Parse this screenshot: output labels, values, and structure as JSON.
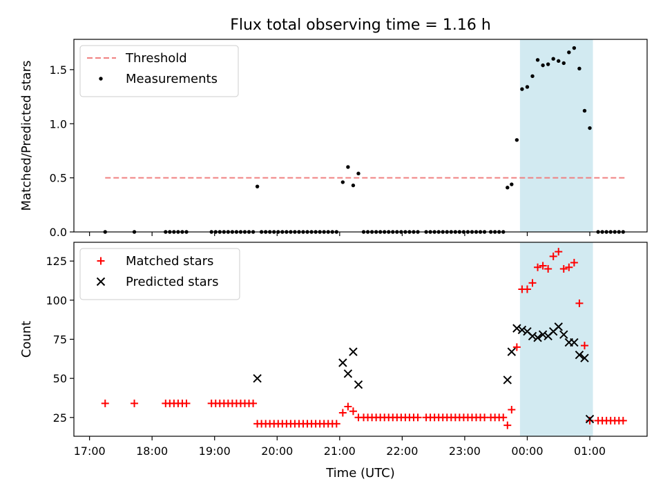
{
  "title": "Flux total observing time = 1.16 h",
  "xlabel": "Time (UTC)",
  "x_tick_labels": [
    "17:00",
    "18:00",
    "19:00",
    "20:00",
    "21:00",
    "22:00",
    "23:00",
    "00:00",
    "01:00"
  ],
  "colors": {
    "threshold": "#f08080",
    "measurements": "#000000",
    "matched": "#ff0000",
    "predicted": "#000000",
    "shade": "#add8e6"
  },
  "chart_data": [
    {
      "type": "scatter",
      "ylabel": "Matched/Predicted stars",
      "xlim": [
        "16:45",
        "01:55"
      ],
      "ylim": [
        0,
        1.78
      ],
      "y_ticks": [
        "0.0",
        "0.5",
        "1.0",
        "1.5"
      ],
      "shaded_interval": [
        "23:53",
        "01:03"
      ],
      "legend_position": "upper-left",
      "threshold": {
        "name": "Threshold",
        "value": 0.5,
        "x_range": [
          "17:15",
          "01:35"
        ]
      },
      "series": [
        {
          "name": "Measurements",
          "points": [
            [
              "17:15",
              0
            ],
            [
              "17:43",
              0
            ],
            [
              "18:13",
              0
            ],
            [
              "18:17",
              0
            ],
            [
              "18:21",
              0
            ],
            [
              "18:25",
              0
            ],
            [
              "18:29",
              0
            ],
            [
              "18:33",
              0
            ],
            [
              "18:57",
              0
            ],
            [
              "19:01",
              0
            ],
            [
              "19:05",
              0
            ],
            [
              "19:09",
              0
            ],
            [
              "19:13",
              0
            ],
            [
              "19:17",
              0
            ],
            [
              "19:21",
              0
            ],
            [
              "19:25",
              0
            ],
            [
              "19:29",
              0
            ],
            [
              "19:33",
              0
            ],
            [
              "19:37",
              0
            ],
            [
              "19:41",
              0.42
            ],
            [
              "19:45",
              0
            ],
            [
              "19:49",
              0
            ],
            [
              "19:53",
              0
            ],
            [
              "19:57",
              0
            ],
            [
              "20:01",
              0
            ],
            [
              "20:05",
              0
            ],
            [
              "20:09",
              0
            ],
            [
              "20:13",
              0
            ],
            [
              "20:17",
              0
            ],
            [
              "20:21",
              0
            ],
            [
              "20:25",
              0
            ],
            [
              "20:29",
              0
            ],
            [
              "20:33",
              0
            ],
            [
              "20:37",
              0
            ],
            [
              "20:41",
              0
            ],
            [
              "20:45",
              0
            ],
            [
              "20:49",
              0
            ],
            [
              "20:53",
              0
            ],
            [
              "20:57",
              0
            ],
            [
              "21:03",
              0.46
            ],
            [
              "21:08",
              0.6
            ],
            [
              "21:13",
              0.43
            ],
            [
              "21:18",
              0.54
            ],
            [
              "21:23",
              0
            ],
            [
              "21:27",
              0
            ],
            [
              "21:31",
              0
            ],
            [
              "21:35",
              0
            ],
            [
              "21:39",
              0
            ],
            [
              "21:43",
              0
            ],
            [
              "21:47",
              0
            ],
            [
              "21:51",
              0
            ],
            [
              "21:55",
              0
            ],
            [
              "21:59",
              0
            ],
            [
              "22:03",
              0
            ],
            [
              "22:07",
              0
            ],
            [
              "22:11",
              0
            ],
            [
              "22:15",
              0
            ],
            [
              "22:23",
              0
            ],
            [
              "22:27",
              0
            ],
            [
              "22:31",
              0
            ],
            [
              "22:35",
              0
            ],
            [
              "22:39",
              0
            ],
            [
              "22:43",
              0
            ],
            [
              "22:47",
              0
            ],
            [
              "22:51",
              0
            ],
            [
              "22:55",
              0
            ],
            [
              "22:59",
              0
            ],
            [
              "23:03",
              0
            ],
            [
              "23:07",
              0
            ],
            [
              "23:11",
              0
            ],
            [
              "23:15",
              0
            ],
            [
              "23:19",
              0
            ],
            [
              "23:25",
              0
            ],
            [
              "23:29",
              0
            ],
            [
              "23:33",
              0
            ],
            [
              "23:37",
              0
            ],
            [
              "23:41",
              0.41
            ],
            [
              "23:45",
              0.44
            ],
            [
              "23:50",
              0.85
            ],
            [
              "23:55",
              1.32
            ],
            [
              "24:00",
              1.34
            ],
            [
              "24:05",
              1.44
            ],
            [
              "24:10",
              1.59
            ],
            [
              "24:15",
              1.54
            ],
            [
              "24:20",
              1.55
            ],
            [
              "24:25",
              1.6
            ],
            [
              "24:30",
              1.58
            ],
            [
              "24:35",
              1.56
            ],
            [
              "24:40",
              1.66
            ],
            [
              "24:45",
              1.7
            ],
            [
              "24:50",
              1.51
            ],
            [
              "24:55",
              1.12
            ],
            [
              "25:00",
              0.96
            ],
            [
              "25:08",
              0
            ],
            [
              "25:12",
              0
            ],
            [
              "25:16",
              0
            ],
            [
              "25:20",
              0
            ],
            [
              "25:24",
              0
            ],
            [
              "25:28",
              0
            ],
            [
              "25:32",
              0
            ]
          ]
        }
      ]
    },
    {
      "type": "scatter",
      "ylabel": "Count",
      "xlim": [
        "16:45",
        "01:55"
      ],
      "ylim": [
        13,
        137
      ],
      "y_ticks": [
        "25",
        "50",
        "75",
        "100",
        "125"
      ],
      "shaded_interval": [
        "23:53",
        "01:03"
      ],
      "legend_position": "upper-left",
      "series": [
        {
          "name": "Matched stars",
          "points": [
            [
              "17:15",
              34
            ],
            [
              "17:43",
              34
            ],
            [
              "18:13",
              34
            ],
            [
              "18:17",
              34
            ],
            [
              "18:21",
              34
            ],
            [
              "18:25",
              34
            ],
            [
              "18:29",
              34
            ],
            [
              "18:33",
              34
            ],
            [
              "18:57",
              34
            ],
            [
              "19:01",
              34
            ],
            [
              "19:05",
              34
            ],
            [
              "19:09",
              34
            ],
            [
              "19:13",
              34
            ],
            [
              "19:17",
              34
            ],
            [
              "19:21",
              34
            ],
            [
              "19:25",
              34
            ],
            [
              "19:29",
              34
            ],
            [
              "19:33",
              34
            ],
            [
              "19:37",
              34
            ],
            [
              "19:41",
              21
            ],
            [
              "19:45",
              21
            ],
            [
              "19:49",
              21
            ],
            [
              "19:53",
              21
            ],
            [
              "19:57",
              21
            ],
            [
              "20:01",
              21
            ],
            [
              "20:05",
              21
            ],
            [
              "20:09",
              21
            ],
            [
              "20:13",
              21
            ],
            [
              "20:17",
              21
            ],
            [
              "20:21",
              21
            ],
            [
              "20:25",
              21
            ],
            [
              "20:29",
              21
            ],
            [
              "20:33",
              21
            ],
            [
              "20:37",
              21
            ],
            [
              "20:41",
              21
            ],
            [
              "20:45",
              21
            ],
            [
              "20:49",
              21
            ],
            [
              "20:53",
              21
            ],
            [
              "20:57",
              21
            ],
            [
              "21:03",
              28
            ],
            [
              "21:08",
              32
            ],
            [
              "21:13",
              29
            ],
            [
              "21:18",
              25
            ],
            [
              "21:23",
              25
            ],
            [
              "21:27",
              25
            ],
            [
              "21:31",
              25
            ],
            [
              "21:35",
              25
            ],
            [
              "21:39",
              25
            ],
            [
              "21:43",
              25
            ],
            [
              "21:47",
              25
            ],
            [
              "21:51",
              25
            ],
            [
              "21:55",
              25
            ],
            [
              "21:59",
              25
            ],
            [
              "22:03",
              25
            ],
            [
              "22:07",
              25
            ],
            [
              "22:11",
              25
            ],
            [
              "22:15",
              25
            ],
            [
              "22:23",
              25
            ],
            [
              "22:27",
              25
            ],
            [
              "22:31",
              25
            ],
            [
              "22:35",
              25
            ],
            [
              "22:39",
              25
            ],
            [
              "22:43",
              25
            ],
            [
              "22:47",
              25
            ],
            [
              "22:51",
              25
            ],
            [
              "22:55",
              25
            ],
            [
              "22:59",
              25
            ],
            [
              "23:03",
              25
            ],
            [
              "23:07",
              25
            ],
            [
              "23:11",
              25
            ],
            [
              "23:15",
              25
            ],
            [
              "23:19",
              25
            ],
            [
              "23:25",
              25
            ],
            [
              "23:29",
              25
            ],
            [
              "23:33",
              25
            ],
            [
              "23:37",
              25
            ],
            [
              "23:41",
              20
            ],
            [
              "23:45",
              30
            ],
            [
              "23:50",
              70
            ],
            [
              "23:55",
              107
            ],
            [
              "24:00",
              107
            ],
            [
              "24:05",
              111
            ],
            [
              "24:10",
              121
            ],
            [
              "24:15",
              122
            ],
            [
              "24:20",
              120
            ],
            [
              "24:25",
              128
            ],
            [
              "24:30",
              131
            ],
            [
              "24:35",
              120
            ],
            [
              "24:40",
              121
            ],
            [
              "24:45",
              124
            ],
            [
              "24:50",
              98
            ],
            [
              "24:55",
              71
            ],
            [
              "25:00",
              23
            ],
            [
              "25:08",
              23
            ],
            [
              "25:12",
              23
            ],
            [
              "25:16",
              23
            ],
            [
              "25:20",
              23
            ],
            [
              "25:24",
              23
            ],
            [
              "25:28",
              23
            ],
            [
              "25:32",
              23
            ]
          ]
        },
        {
          "name": "Predicted stars",
          "points": [
            [
              "19:41",
              50
            ],
            [
              "21:03",
              60
            ],
            [
              "21:08",
              53
            ],
            [
              "21:13",
              67
            ],
            [
              "21:18",
              46
            ],
            [
              "23:41",
              49
            ],
            [
              "23:45",
              67
            ],
            [
              "23:50",
              82
            ],
            [
              "23:55",
              81
            ],
            [
              "24:00",
              80
            ],
            [
              "24:05",
              77
            ],
            [
              "24:10",
              76
            ],
            [
              "24:15",
              78
            ],
            [
              "24:20",
              77
            ],
            [
              "24:25",
              80
            ],
            [
              "24:30",
              83
            ],
            [
              "24:35",
              78
            ],
            [
              "24:40",
              73
            ],
            [
              "24:45",
              73
            ],
            [
              "24:50",
              65
            ],
            [
              "24:55",
              63
            ],
            [
              "25:00",
              24
            ]
          ]
        }
      ]
    }
  ]
}
